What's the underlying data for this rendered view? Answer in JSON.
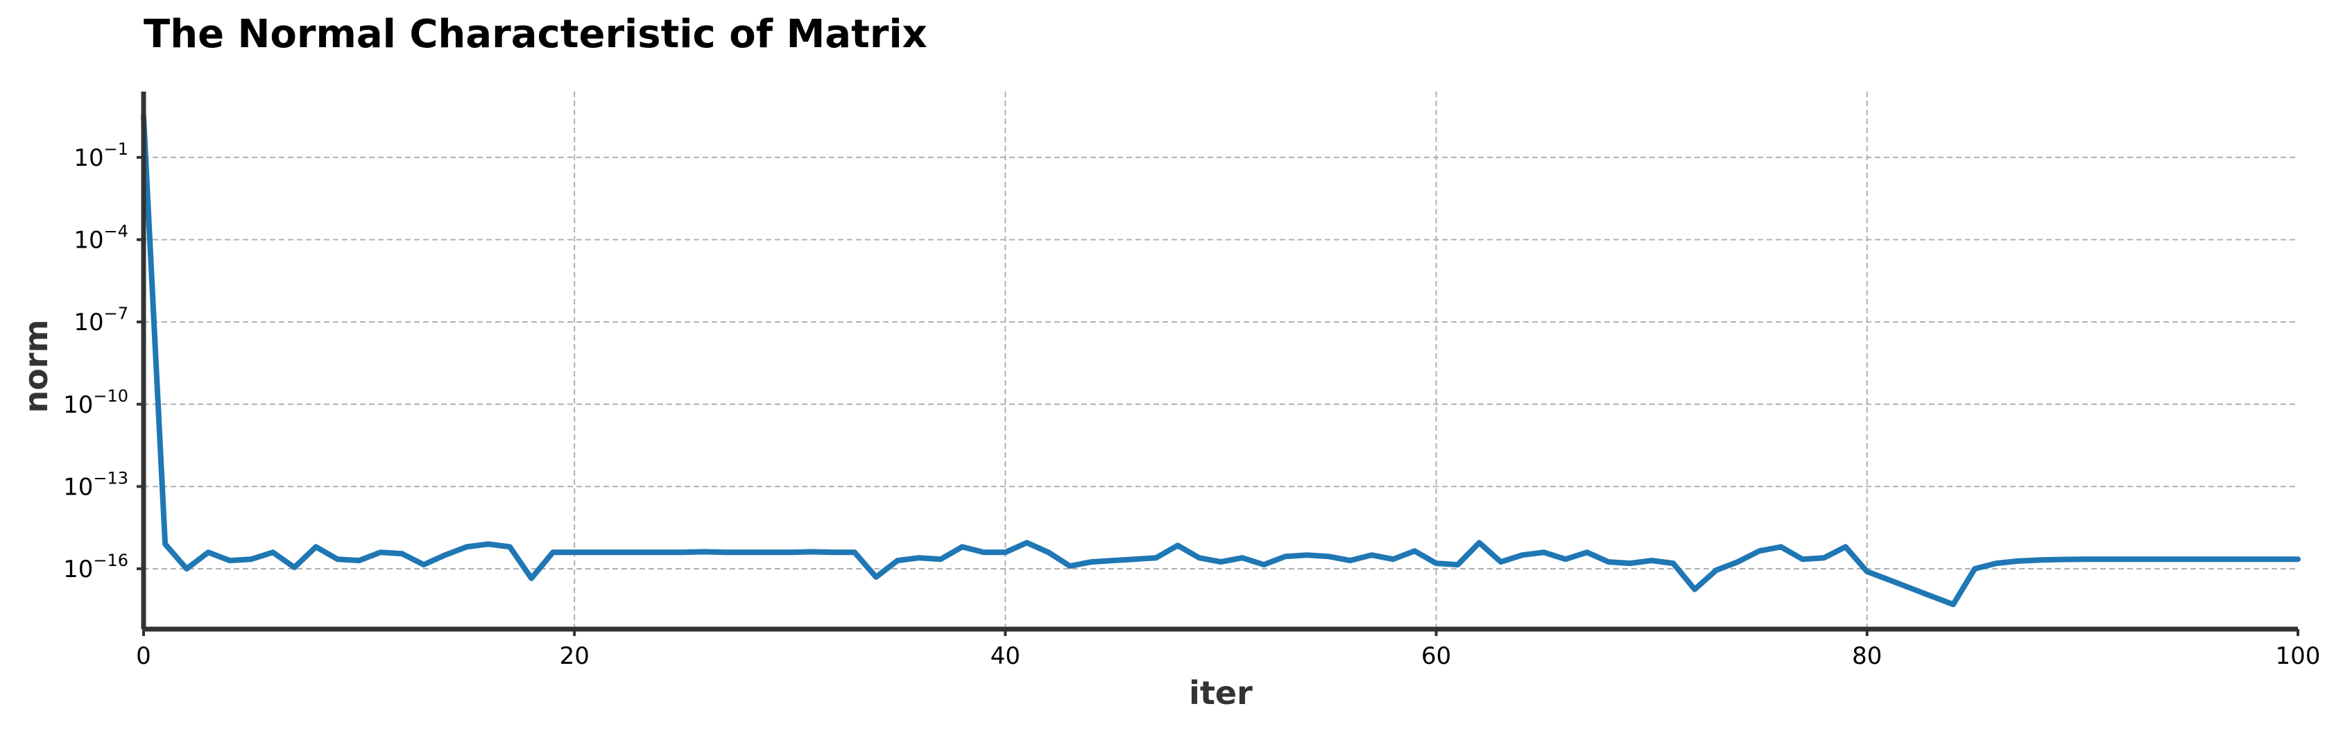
{
  "chart_data": {
    "type": "line",
    "title": "The Normal Characteristic of Matrix",
    "xlabel": "iter",
    "ylabel": "norm",
    "yscale": "log",
    "xlim": [
      0,
      100
    ],
    "ylim_log10": [
      -18.2,
      1.4
    ],
    "grid": true,
    "legend": "none",
    "colors": {
      "line": "#1f77b4",
      "grid": "#b0b0b0",
      "spine": "#333333"
    },
    "x_ticks": [
      "0",
      "20",
      "40",
      "60",
      "80",
      "100"
    ],
    "y_ticks": [
      {
        "base": "10",
        "exp": "−1",
        "log10": -1
      },
      {
        "base": "10",
        "exp": "−4",
        "log10": -4
      },
      {
        "base": "10",
        "exp": "−7",
        "log10": -7
      },
      {
        "base": "10",
        "exp": "−10",
        "log10": -10
      },
      {
        "base": "10",
        "exp": "−13",
        "log10": -13
      },
      {
        "base": "10",
        "exp": "−16",
        "log10": -16
      }
    ],
    "series": [
      {
        "x": [
          0,
          1,
          2,
          3,
          4,
          5,
          6,
          7,
          8,
          9,
          10,
          11,
          12,
          13,
          14,
          15,
          16,
          17,
          18,
          19,
          20,
          21,
          22,
          23,
          24,
          25,
          26,
          27,
          28,
          29,
          30,
          31,
          32,
          33,
          34,
          35,
          36,
          37,
          38,
          39,
          40,
          41,
          42,
          43,
          44,
          45,
          46,
          47,
          48,
          49,
          50,
          51,
          52,
          53,
          54,
          55,
          56,
          57,
          58,
          59,
          60,
          61,
          62,
          63,
          64,
          65,
          66,
          67,
          68,
          69,
          70,
          71,
          72,
          73,
          74,
          75,
          76,
          77,
          78,
          79,
          80,
          81,
          82,
          83,
          84,
          85,
          86,
          87,
          88,
          89,
          90,
          91,
          92,
          93,
          94,
          95,
          96,
          97,
          98,
          99,
          100
        ],
        "log10_y": [
          0.5,
          -15.1,
          -16.0,
          -15.4,
          -15.7,
          -15.65,
          -15.4,
          -15.95,
          -15.2,
          -15.65,
          -15.7,
          -15.4,
          -15.45,
          -15.85,
          -15.5,
          -15.2,
          -15.1,
          -15.2,
          -16.35,
          -15.4,
          -15.4,
          -15.4,
          -15.4,
          -15.4,
          -15.4,
          -15.4,
          -15.38,
          -15.4,
          -15.4,
          -15.4,
          -15.4,
          -15.38,
          -15.4,
          -15.4,
          -16.3,
          -15.7,
          -15.6,
          -15.65,
          -15.2,
          -15.4,
          -15.4,
          -15.05,
          -15.4,
          -15.9,
          -15.75,
          -15.7,
          -15.65,
          -15.6,
          -15.15,
          -15.6,
          -15.75,
          -15.6,
          -15.85,
          -15.55,
          -15.5,
          -15.55,
          -15.7,
          -15.5,
          -15.65,
          -15.35,
          -15.8,
          -15.85,
          -15.05,
          -15.75,
          -15.5,
          -15.4,
          -15.65,
          -15.4,
          -15.75,
          -15.8,
          -15.7,
          -15.8,
          -16.75,
          -16.05,
          -15.75,
          -15.35,
          -15.2,
          -15.65,
          -15.6,
          -15.2,
          -16.1,
          -16.4,
          -16.7,
          -17.0,
          -17.3,
          -16.0,
          -15.8,
          -15.72,
          -15.68,
          -15.66,
          -15.65,
          -15.65,
          -15.65,
          -15.65,
          -15.65,
          -15.65,
          -15.65,
          -15.65,
          -15.65,
          -15.65,
          -15.65
        ]
      }
    ]
  }
}
